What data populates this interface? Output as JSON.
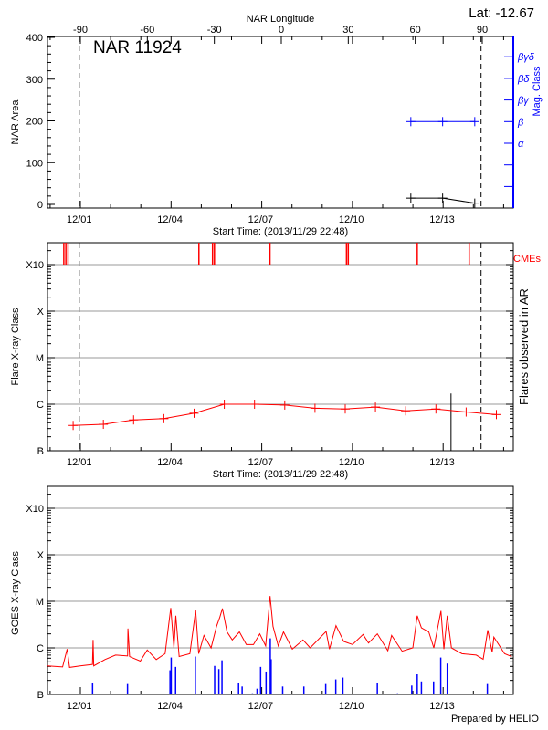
{
  "header": {
    "lat_label": "Lat: -12.67",
    "region_title": "NAR 11924",
    "footer": "Prepared by HELIO"
  },
  "colors": {
    "flare": "#ff0000",
    "goes": "#ff0000",
    "mag_class": "#0000ff",
    "goes_flares": "#0000ff",
    "cme": "#ff0000",
    "grid": "#999999",
    "axis": "#000000"
  },
  "chart_data": [
    {
      "type": "line",
      "panel": "area",
      "xlabel": "Start Time: (2013/11/29 22:48)",
      "xlim": [
        "2013-11-29 22:48",
        "2013-12-15 08:40"
      ],
      "x_ticks": [
        "2013-12-01 00:00",
        "2013-12-04 00:00",
        "2013-12-07 00:00",
        "2013-12-10 00:00",
        "2013-12-13 00:00"
      ],
      "x_tick_labels": [
        "12/01",
        "12/04",
        "12/07",
        "12/10",
        "12/13"
      ],
      "top_axis": {
        "label": "NAR Longitude",
        "ticks": [
          -90,
          -60,
          -30,
          0,
          30,
          60,
          90
        ],
        "tick_labels": [
          "-90",
          "-60",
          "-30",
          "0",
          "30",
          "60",
          "90"
        ]
      },
      "ylabel": "NAR Area",
      "ylim": [
        0,
        400
      ],
      "y_ticks": [
        0,
        100,
        200,
        300,
        400
      ],
      "y_tick_labels": [
        "0",
        "100",
        "200",
        "300",
        "400"
      ],
      "y2label": "Mag. Class",
      "y2_categories": [
        "α",
        "β",
        "βγ",
        "βδ",
        "βγδ"
      ],
      "limb_crossings": [
        "2013-12-01 00:00",
        "2013-12-14 07:00"
      ],
      "series": [
        {
          "key": "area",
          "x": [
            "2013-12-11 23:15",
            "2013-12-13 00:30",
            "2013-12-14 02:00"
          ],
          "values": [
            15,
            15,
            3
          ]
        },
        {
          "key": "mag_class",
          "x": [
            "2013-12-11 23:15",
            "2013-12-13 00:30",
            "2013-12-14 02:00"
          ],
          "values": [
            "β",
            "β",
            "β"
          ]
        }
      ]
    },
    {
      "type": "line",
      "panel": "flares",
      "xlabel": "Start Time: (2013/11/29 22:48)",
      "x_tick_labels": [
        "12/01",
        "12/04",
        "12/07",
        "12/10",
        "12/13"
      ],
      "ylabel": "Flare X-ray Class",
      "y2label": "Flares observed in AR",
      "yscale": "log",
      "ylim": [
        1e-07,
        0.00034
      ],
      "y_ticks": [
        1e-07,
        1e-06,
        1e-05,
        0.0001,
        0.001
      ],
      "y_tick_labels": [
        "B",
        "C",
        "M",
        "X",
        "X10"
      ],
      "grid": true,
      "cme_label": "CMEs",
      "cmes": [
        "2013-11-30 11:45",
        "2013-11-30 13:25",
        "2013-11-30 15:05",
        "2013-12-04 23:00",
        "2013-12-05 09:50",
        "2013-12-05 11:20",
        "2013-12-07 07:25",
        "2013-12-09 20:10",
        "2013-12-09 21:35",
        "2013-12-12 04:20",
        "2013-12-13 21:35"
      ],
      "ar_flares": [
        {
          "x": "2013-12-13 07:10",
          "value": 1.7e-06
        }
      ],
      "series": [
        {
          "key": "flare_class",
          "x": [
            "2013-11-30 19:10",
            "2013-12-01 19:10",
            "2013-12-02 19:10",
            "2013-12-03 19:10",
            "2013-12-04 19:10",
            "2013-12-05 19:10",
            "2013-12-06 19:10",
            "2013-12-07 19:10",
            "2013-12-08 19:10",
            "2013-12-09 19:10",
            "2013-12-10 19:10",
            "2013-12-11 19:10",
            "2013-12-12 19:10",
            "2013-12-13 19:10",
            "2013-12-14 19:10"
          ],
          "values": [
            3.5e-07,
            3.7e-07,
            4.6e-07,
            4.9e-07,
            6.4e-07,
            1e-06,
            1e-06,
            9.6e-07,
            8.2e-07,
            7.9e-07,
            8.7e-07,
            7.2e-07,
            7.9e-07,
            6.8e-07,
            6e-07
          ]
        }
      ]
    },
    {
      "type": "line",
      "panel": "goes",
      "x_tick_labels": [
        "12/01",
        "12/04",
        "12/07",
        "12/10",
        "12/13"
      ],
      "ylabel": "GOES X-ray Class",
      "yscale": "log",
      "ylim": [
        1e-07,
        0.00034
      ],
      "y_ticks": [
        1e-07,
        1e-06,
        1e-05,
        0.0001,
        0.001
      ],
      "y_tick_labels": [
        "B",
        "C",
        "M",
        "X",
        "X10"
      ],
      "grid": true,
      "series": [
        {
          "key": "goes_flux",
          "x": [
            "2013-11-29 22:48",
            "2013-11-30 10:48",
            "2013-11-30 14:24",
            "2013-11-30 16:20",
            "2013-12-01 00:45",
            "2013-12-01 10:30",
            "2013-12-01 11:00",
            "2013-12-01 11:30",
            "2013-12-01 20:24",
            "2013-12-02 04:50",
            "2013-12-02 14:24",
            "2013-12-02 14:40",
            "2013-12-02 16:00",
            "2013-12-03 00:30",
            "2013-12-03 06:00",
            "2013-12-03 13:10",
            "2013-12-03 20:10",
            "2013-12-04 00:40",
            "2013-12-04 03:10",
            "2013-12-04 04:40",
            "2013-12-04 07:20",
            "2013-12-04 15:50",
            "2013-12-04 20:25",
            "2013-12-04 22:50",
            "2013-12-05 03:00",
            "2013-12-05 08:40",
            "2013-12-05 13:00",
            "2013-12-05 15:40",
            "2013-12-05 17:40",
            "2013-12-05 21:20",
            "2013-12-06 01:30",
            "2013-12-06 07:10",
            "2013-12-06 12:40",
            "2013-12-06 18:20",
            "2013-12-06 23:20",
            "2013-12-07 04:00",
            "2013-12-07 07:30",
            "2013-12-07 09:50",
            "2013-12-07 14:00",
            "2013-12-07 18:10",
            "2013-12-08 01:10",
            "2013-12-08 09:40",
            "2013-12-08 15:20",
            "2013-12-09 04:00",
            "2013-12-09 06:40",
            "2013-12-09 11:50",
            "2013-12-09 18:00",
            "2013-12-10 01:00",
            "2013-12-10 09:20",
            "2013-12-10 13:40",
            "2013-12-10 20:40",
            "2013-12-11 05:00",
            "2013-12-11 08:00",
            "2013-12-11 16:20",
            "2013-12-12 00:50",
            "2013-12-12 04:20",
            "2013-12-12 07:40",
            "2013-12-12 13:30",
            "2013-12-12 17:30",
            "2013-12-12 23:10",
            "2013-12-13 01:30",
            "2013-12-13 04:10",
            "2013-12-13 07:30",
            "2013-12-13 15:50",
            "2013-12-14 03:10",
            "2013-12-14 08:40",
            "2013-12-14 12:20",
            "2013-12-14 15:50",
            "2013-12-14 17:10",
            "2013-12-15 01:40",
            "2013-12-15 07:20"
          ],
          "values": [
            4.1e-07,
            3.9e-07,
            9.4e-07,
            3.8e-07,
            4.1e-07,
            4.4e-07,
            1.48e-06,
            4.1e-07,
            5.6e-07,
            7e-07,
            6.7e-07,
            2.6e-06,
            6.5e-07,
            5.2e-07,
            9e-07,
            5.6e-07,
            7.5e-07,
            7.2e-06,
            1e-06,
            4.9e-06,
            6.5e-07,
            7.5e-07,
            6.4e-06,
            7.5e-07,
            1.85e-06,
            1e-06,
            2.9e-06,
            4.6e-06,
            7e-06,
            2.2e-06,
            1.48e-06,
            2.2e-06,
            1.18e-06,
            1.18e-06,
            2e-06,
            1.1e-06,
            1.3e-05,
            2.9e-06,
            1.1e-06,
            2.2e-06,
            9.4e-07,
            1.48e-06,
            1e-06,
            2.25e-06,
            9.4e-07,
            3e-06,
            1.37e-06,
            1.18e-06,
            1.94e-06,
            1.27e-06,
            2e-06,
            8.7e-07,
            1.85e-06,
            8.5e-07,
            1e-06,
            4.9e-06,
            2.7e-06,
            2.2e-06,
            1e-06,
            6.2e-06,
            9.4e-07,
            4.9e-06,
            1e-06,
            7.5e-07,
            7e-07,
            5.7e-07,
            2.4e-06,
            8.1e-07,
            1.7e-06,
            7.5e-07,
            6.5e-07
          ]
        },
        {
          "key": "goes_flares",
          "x": [
            "2013-12-01 10:35",
            "2013-12-02 14:20",
            "2013-12-04 00:05",
            "2013-12-04 01:00",
            "2013-12-04 04:30",
            "2013-12-04 20:10",
            "2013-12-05 11:30",
            "2013-12-05 14:50",
            "2013-12-05 17:20",
            "2013-12-06 06:30",
            "2013-12-06 09:20",
            "2013-12-06 17:30",
            "2013-12-06 21:10",
            "2013-12-07 00:00",
            "2013-12-07 04:20",
            "2013-12-07 07:40",
            "2013-12-07 08:20",
            "2013-12-07 17:30",
            "2013-12-08 10:20",
            "2013-12-09 03:40",
            "2013-12-09 11:40",
            "2013-12-09 17:20",
            "2013-12-10 20:40",
            "2013-12-11 12:40",
            "2013-12-12 00:00",
            "2013-12-12 04:20",
            "2013-12-12 07:40",
            "2013-12-12 17:20",
            "2013-12-12 23:00",
            "2013-12-13 04:10",
            "2013-12-14 12:00"
          ],
          "values": [
            1.8e-07,
            1.67e-07,
            3.3e-07,
            6.2e-07,
            3.9e-07,
            6.5e-07,
            4.1e-07,
            3.5e-07,
            5.4e-07,
            1.8e-07,
            1.48e-07,
            1.06e-07,
            1.33e-07,
            3.9e-07,
            3.1e-07,
            1.6e-06,
            5.7e-07,
            1.48e-07,
            1.48e-07,
            1.67e-07,
            2.1e-07,
            2.3e-07,
            1.8e-07,
            1.06e-07,
            1.55e-07,
            2.7e-07,
            1.9e-07,
            1.9e-07,
            6.2e-07,
            4.6e-07,
            1.67e-07
          ]
        }
      ]
    }
  ]
}
